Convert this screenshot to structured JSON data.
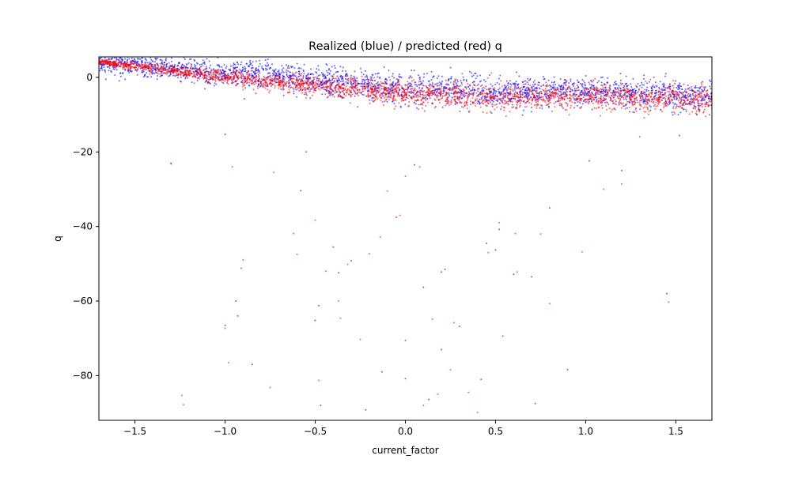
{
  "chart_data": {
    "type": "scatter",
    "title": "Realized (blue) / predicted (red) q",
    "xlabel": "current_factor",
    "ylabel": "q",
    "xlim": [
      -1.7,
      1.7
    ],
    "ylim": [
      -92,
      5.5
    ],
    "x_ticks": [
      -1.5,
      -1.0,
      -0.5,
      0.0,
      0.5,
      1.0,
      1.5
    ],
    "x_tick_labels": [
      "−1.5",
      "−1.0",
      "−0.5",
      "0.0",
      "0.5",
      "1.0",
      "1.5"
    ],
    "y_ticks": [
      0,
      -20,
      -40,
      -60,
      -80
    ],
    "y_tick_labels": [
      "0",
      "−20",
      "−40",
      "−60",
      "−80"
    ],
    "grid": false,
    "legend": "none",
    "series": [
      {
        "color": "#0000ff",
        "marker_size": 1,
        "alpha": 0.6,
        "main_band": {
          "x_range": [
            -1.7,
            1.7
          ],
          "center": {
            "x": [
              -1.7,
              -1.5,
              -1.0,
              -0.5,
              0.0,
              0.5,
              1.0,
              1.5,
              1.7
            ],
            "y": [
              4.0,
              3.3,
              1.2,
              -0.9,
              -3.0,
              -4.0,
              -3.8,
              -4.8,
              -5.5
            ]
          },
          "spread": {
            "x": [
              -1.7,
              -1.5,
              -1.0,
              -0.5,
              0.0,
              0.5,
              1.0,
              1.5,
              1.7
            ],
            "y": [
              1.2,
              1.5,
              1.9,
              2.0,
              2.0,
              1.9,
              1.8,
              2.0,
              2.2
            ]
          }
        },
        "outliers": [
          [
            -1.3,
            -23.2
          ],
          [
            -1.0,
            -66.5
          ],
          [
            -1.0,
            -15.3
          ],
          [
            -0.91,
            -51.2
          ],
          [
            -0.93,
            -64.0
          ],
          [
            -0.94,
            -60.0
          ],
          [
            -0.85,
            -77.0
          ],
          [
            -0.58,
            -30.4
          ],
          [
            -0.55,
            -20.0
          ],
          [
            -0.5,
            -65.2
          ],
          [
            -0.48,
            -61.2
          ],
          [
            -0.47,
            -88.0
          ],
          [
            -0.4,
            -45.5
          ],
          [
            -0.37,
            -52.4
          ],
          [
            -0.3,
            -49.2
          ],
          [
            -0.22,
            -89.2
          ],
          [
            -0.13,
            -79.0
          ],
          [
            -0.05,
            -37.5
          ],
          [
            0.0,
            -80.8
          ],
          [
            0.0,
            -70.6
          ],
          [
            0.05,
            -23.5
          ],
          [
            0.1,
            -56.3
          ],
          [
            0.13,
            -86.4
          ],
          [
            0.2,
            -52.2
          ],
          [
            0.2,
            -73.0
          ],
          [
            0.22,
            -51.5
          ],
          [
            0.3,
            -66.8
          ],
          [
            0.42,
            -81.0
          ],
          [
            0.45,
            -44.5
          ],
          [
            0.5,
            -46.3
          ],
          [
            0.52,
            -40.8
          ],
          [
            0.54,
            -69.4
          ],
          [
            0.6,
            -52.8
          ],
          [
            0.7,
            -53.5
          ],
          [
            0.72,
            -87.5
          ],
          [
            0.8,
            -35.0
          ],
          [
            0.9,
            -78.4
          ],
          [
            1.02,
            -22.4
          ],
          [
            1.2,
            -25.0
          ],
          [
            1.45,
            -58.0
          ],
          [
            1.52,
            -15.6
          ]
        ]
      },
      {
        "color": "#ff0000",
        "marker_size": 1,
        "alpha": 0.6,
        "main_band": {
          "x_range": [
            -1.7,
            1.7
          ],
          "center": {
            "x": [
              -1.7,
              -1.5,
              -1.0,
              -0.5,
              0.0,
              0.5,
              1.0,
              1.5,
              1.7
            ],
            "y": [
              4.2,
              3.0,
              0.2,
              -2.3,
              -4.3,
              -5.3,
              -5.0,
              -5.6,
              -6.0
            ]
          },
          "spread": {
            "x": [
              -1.7,
              -1.5,
              -1.0,
              -0.5,
              0.0,
              0.5,
              1.0,
              1.5,
              1.7
            ],
            "y": [
              0.4,
              0.6,
              1.0,
              1.3,
              1.6,
              1.7,
              1.7,
              1.8,
              2.0
            ]
          }
        },
        "outliers": [
          [
            -1.3,
            -23.0
          ],
          [
            -1.24,
            -85.3
          ],
          [
            -1.23,
            -87.8
          ],
          [
            -1.0,
            -67.3
          ],
          [
            -0.98,
            -76.5
          ],
          [
            -0.96,
            -24.0
          ],
          [
            -0.9,
            -49.0
          ],
          [
            -0.75,
            -83.2
          ],
          [
            -0.73,
            -25.5
          ],
          [
            -0.62,
            -41.9
          ],
          [
            -0.6,
            -47.5
          ],
          [
            -0.5,
            -38.3
          ],
          [
            -0.48,
            -81.3
          ],
          [
            -0.44,
            -52.0
          ],
          [
            -0.37,
            -60.0
          ],
          [
            -0.36,
            -64.6
          ],
          [
            -0.32,
            -50.2
          ],
          [
            -0.25,
            -70.3
          ],
          [
            -0.2,
            -47.3
          ],
          [
            -0.14,
            -42.8
          ],
          [
            -0.1,
            -30.5
          ],
          [
            -0.03,
            -37.0
          ],
          [
            0.0,
            -26.5
          ],
          [
            0.08,
            -24.0
          ],
          [
            0.1,
            -88.0
          ],
          [
            0.15,
            -64.8
          ],
          [
            0.18,
            -85.0
          ],
          [
            0.25,
            -78.5
          ],
          [
            0.27,
            -65.8
          ],
          [
            0.35,
            -84.5
          ],
          [
            0.4,
            -89.9
          ],
          [
            0.46,
            -47.0
          ],
          [
            0.52,
            -39.0
          ],
          [
            0.61,
            -41.9
          ],
          [
            0.62,
            -52.2
          ],
          [
            0.75,
            -42.0
          ],
          [
            0.8,
            -60.7
          ],
          [
            0.98,
            -46.8
          ],
          [
            1.1,
            -30.0
          ],
          [
            1.2,
            -28.6
          ],
          [
            1.3,
            -15.9
          ],
          [
            1.46,
            -60.3
          ]
        ]
      }
    ]
  }
}
